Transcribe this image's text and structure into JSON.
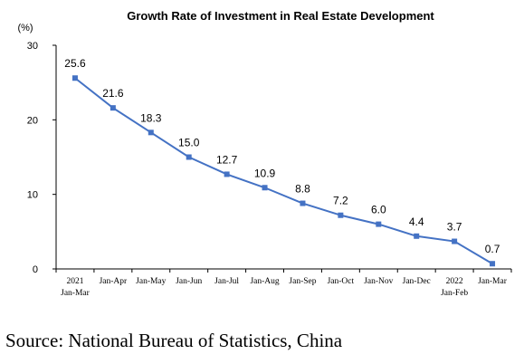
{
  "chart_data": {
    "type": "line",
    "title": "Growth Rate of Investment in Real Estate Development",
    "y_unit": "(%)",
    "categories": [
      [
        "2021",
        "Jan-Mar"
      ],
      [
        "Jan-Apr"
      ],
      [
        "Jan-May"
      ],
      [
        "Jan-Jun"
      ],
      [
        "Jan-Jul"
      ],
      [
        "Jan-Aug"
      ],
      [
        "Jan-Sep"
      ],
      [
        "Jan-Oct"
      ],
      [
        "Jan-Nov"
      ],
      [
        "Jan-Dec"
      ],
      [
        "2022",
        "Jan-Feb"
      ],
      [
        "Jan-Mar"
      ]
    ],
    "series": [
      {
        "values": [
          25.6,
          21.6,
          18.3,
          15.0,
          12.7,
          10.9,
          8.8,
          7.2,
          6.0,
          4.4,
          3.7,
          0.7
        ]
      }
    ],
    "data_labels": [
      "25.6",
      "21.6",
      "18.3",
      "15.0",
      "12.7",
      "10.9",
      "8.8",
      "7.2",
      "6.0",
      "4.4",
      "3.7",
      "0.7"
    ],
    "ylim": [
      0,
      30
    ],
    "yticks": [
      0,
      10,
      20,
      30
    ],
    "grid": false,
    "line_color": "#4472C4"
  },
  "source": "Source: National Bureau of Statistics, China"
}
